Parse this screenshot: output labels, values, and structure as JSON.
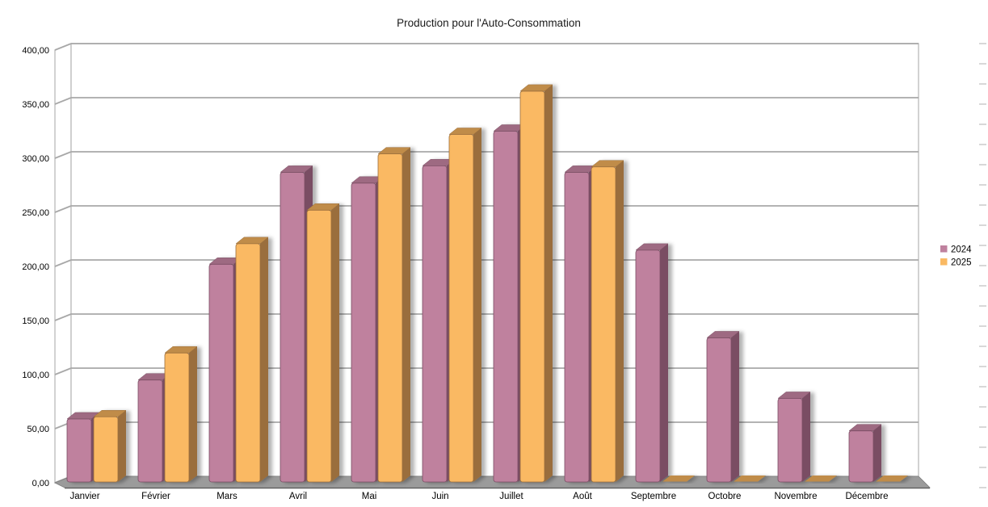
{
  "title": "Production pour l'Auto-Consommation",
  "chart_data": {
    "type": "bar",
    "style": "3d-column",
    "title": "Production pour l'Auto-Consommation",
    "categories": [
      "Janvier",
      "Février",
      "Mars",
      "Avril",
      "Mai",
      "Juin",
      "Juillet",
      "Août",
      "Septembre",
      "Octobre",
      "Novembre",
      "Décembre"
    ],
    "series": [
      {
        "name": "2024",
        "color": "#bf819e",
        "side_color": "#7a4e63",
        "top_color": "#9e6a82",
        "values": [
          59,
          95,
          202,
          287,
          277,
          293,
          325,
          287,
          215,
          134,
          78,
          48
        ]
      },
      {
        "name": "2025",
        "color": "#fab963",
        "side_color": "#9a6e3c",
        "top_color": "#c08c48",
        "values": [
          61,
          120,
          221,
          252,
          304,
          322,
          362,
          292,
          0,
          0,
          0,
          0
        ]
      }
    ],
    "ylim": [
      0,
      400
    ],
    "y_tick_values": [
      0,
      50,
      100,
      150,
      200,
      250,
      300,
      350,
      400
    ],
    "y_tick_labels": [
      "0,00",
      "50,00",
      "100,00",
      "150,00",
      "200,00",
      "250,00",
      "300,00",
      "350,00",
      "400,00"
    ],
    "grid": true,
    "legend_position": "right"
  },
  "colors": {
    "background": "#ffffff",
    "wall": "#ffffff",
    "wall_border": "#b3b3b3",
    "gridline": "#a8a8a8",
    "floor": "#9b9b9b",
    "floor_edge": "#5f5f5f",
    "text": "#000000",
    "tick_dash": "#b0b0b0"
  }
}
